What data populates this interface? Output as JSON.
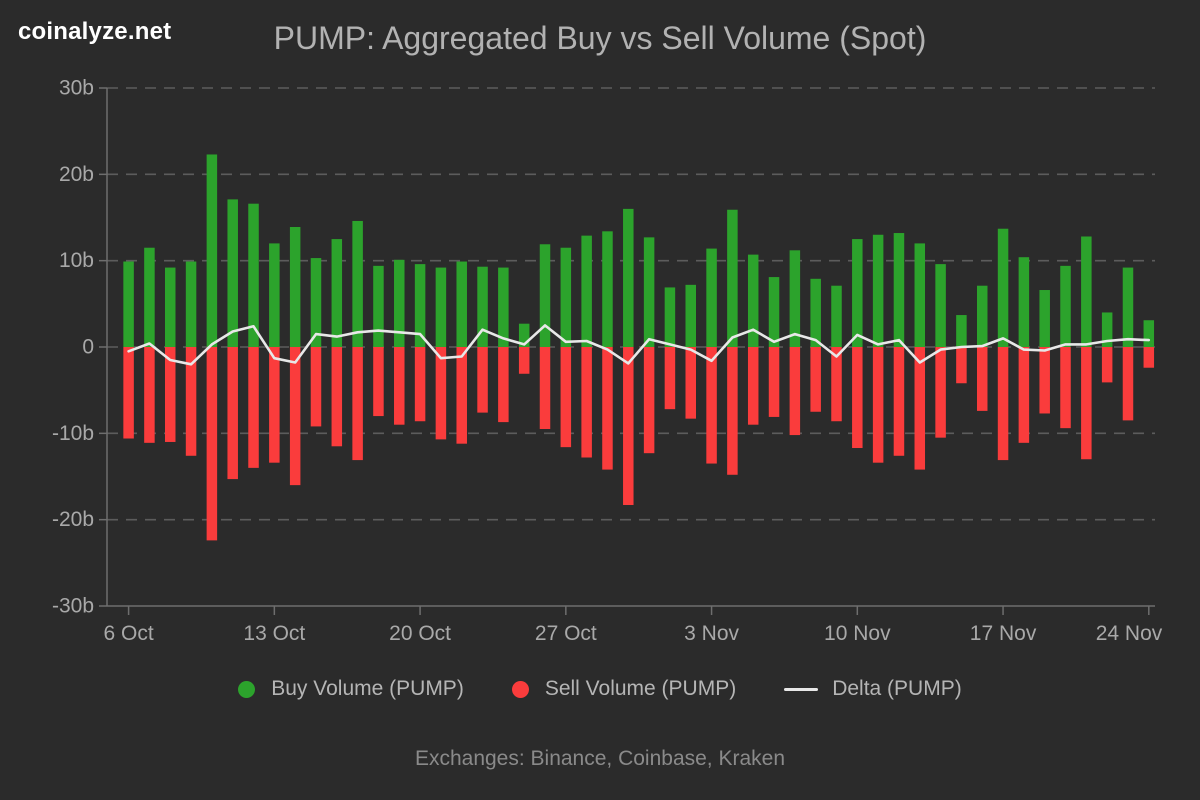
{
  "header": {
    "logo": "coinalyze.net",
    "title": "PUMP: Aggregated Buy vs Sell Volume (Spot)"
  },
  "chart_data": {
    "type": "bar",
    "title": "PUMP: Aggregated Buy vs Sell Volume (Spot)",
    "unit": "billions",
    "categories": [
      "6 Oct",
      "7 Oct",
      "8 Oct",
      "9 Oct",
      "10 Oct",
      "11 Oct",
      "12 Oct",
      "13 Oct",
      "14 Oct",
      "15 Oct",
      "16 Oct",
      "17 Oct",
      "18 Oct",
      "19 Oct",
      "20 Oct",
      "21 Oct",
      "22 Oct",
      "23 Oct",
      "24 Oct",
      "25 Oct",
      "26 Oct",
      "27 Oct",
      "28 Oct",
      "29 Oct",
      "30 Oct",
      "31 Oct",
      "1 Nov",
      "2 Nov",
      "3 Nov",
      "4 Nov",
      "5 Nov",
      "6 Nov",
      "7 Nov",
      "8 Nov",
      "9 Nov",
      "10 Nov",
      "11 Nov",
      "12 Nov",
      "13 Nov",
      "14 Nov",
      "15 Nov",
      "16 Nov",
      "17 Nov",
      "18 Nov",
      "19 Nov",
      "20 Nov",
      "21 Nov",
      "22 Nov",
      "23 Nov",
      "24 Nov"
    ],
    "series": [
      {
        "name": "Buy Volume (PUMP)",
        "type": "bar",
        "color": "#2ca32c",
        "values": [
          9.9,
          11.5,
          9.2,
          9.9,
          22.3,
          17.1,
          16.6,
          12.0,
          13.9,
          10.3,
          12.5,
          14.6,
          9.4,
          10.1,
          9.6,
          9.2,
          9.9,
          9.3,
          9.2,
          2.7,
          11.9,
          11.5,
          12.9,
          13.4,
          16.0,
          12.7,
          6.9,
          7.2,
          11.4,
          15.9,
          10.7,
          8.1,
          11.2,
          7.9,
          7.1,
          12.5,
          13.0,
          13.2,
          12.0,
          9.6,
          3.7,
          7.1,
          13.7,
          10.4,
          6.6,
          9.4,
          12.8,
          4.0,
          9.2,
          3.1
        ]
      },
      {
        "name": "Sell Volume (PUMP)",
        "type": "bar",
        "color": "#fa3c3c",
        "values": [
          -10.6,
          -11.1,
          -11.0,
          -12.6,
          -22.4,
          -15.3,
          -14.0,
          -13.4,
          -16.0,
          -9.2,
          -11.5,
          -13.1,
          -8.0,
          -9.0,
          -8.6,
          -10.7,
          -11.2,
          -7.6,
          -8.7,
          -3.1,
          -9.5,
          -11.6,
          -12.8,
          -14.2,
          -18.3,
          -12.3,
          -7.2,
          -8.3,
          -13.5,
          -14.8,
          -9.0,
          -8.1,
          -10.2,
          -7.5,
          -8.6,
          -11.7,
          -13.4,
          -12.6,
          -14.2,
          -10.5,
          -4.2,
          -7.4,
          -13.1,
          -11.1,
          -7.7,
          -9.4,
          -13.0,
          -4.1,
          -8.5,
          -2.4
        ]
      },
      {
        "name": "Delta (PUMP)",
        "type": "line",
        "color": "#e8e8e8",
        "values": [
          -0.5,
          0.4,
          -1.5,
          -2.0,
          0.3,
          1.8,
          2.4,
          -1.3,
          -1.8,
          1.5,
          1.2,
          1.7,
          1.9,
          1.7,
          1.5,
          -1.3,
          -1.1,
          2.0,
          1.0,
          0.3,
          2.5,
          0.6,
          0.7,
          -0.3,
          -1.9,
          0.9,
          0.3,
          -0.3,
          -1.6,
          1.1,
          2.0,
          0.6,
          1.5,
          0.8,
          -1.1,
          1.4,
          0.3,
          0.8,
          -1.8,
          -0.3,
          0.0,
          0.1,
          1.0,
          -0.3,
          -0.4,
          0.3,
          0.3,
          0.7,
          0.9,
          0.8
        ]
      }
    ],
    "x_tick_labels": [
      "6 Oct",
      "13 Oct",
      "20 Oct",
      "27 Oct",
      "3 Nov",
      "10 Nov",
      "17 Nov",
      "24 Nov"
    ],
    "x_tick_indices": [
      0,
      7,
      14,
      21,
      28,
      35,
      42,
      49
    ],
    "y_ticks": [
      {
        "value": 30,
        "label": "30b"
      },
      {
        "value": 20,
        "label": "20b"
      },
      {
        "value": 10,
        "label": "10b"
      },
      {
        "value": 0,
        "label": "0"
      },
      {
        "value": -10,
        "label": "-10b"
      },
      {
        "value": -20,
        "label": "-20b"
      },
      {
        "value": -30,
        "label": "-30b"
      }
    ],
    "ylim": [
      -30,
      30
    ],
    "grid": "horizontal-dashed",
    "legend_position": "bottom"
  },
  "legend": {
    "items": [
      {
        "label": "Buy Volume (PUMP)",
        "color": "#2ca32c",
        "shape": "circle"
      },
      {
        "label": "Sell Volume (PUMP)",
        "color": "#fa3c3c",
        "shape": "circle"
      },
      {
        "label": "Delta (PUMP)",
        "color": "#e8e8e8",
        "shape": "line"
      }
    ]
  },
  "footer": {
    "text": "Exchanges: Binance, Coinbase, Kraken"
  },
  "colors": {
    "background": "#2b2b2b",
    "title_text": "#b2b2b2",
    "axis_text": "#a9a9a9",
    "grid_line": "#5c5c5c",
    "axis_line": "#6e6e6e",
    "buy": "#2ca32c",
    "sell": "#fa3c3c",
    "delta": "#e8e8e8"
  }
}
